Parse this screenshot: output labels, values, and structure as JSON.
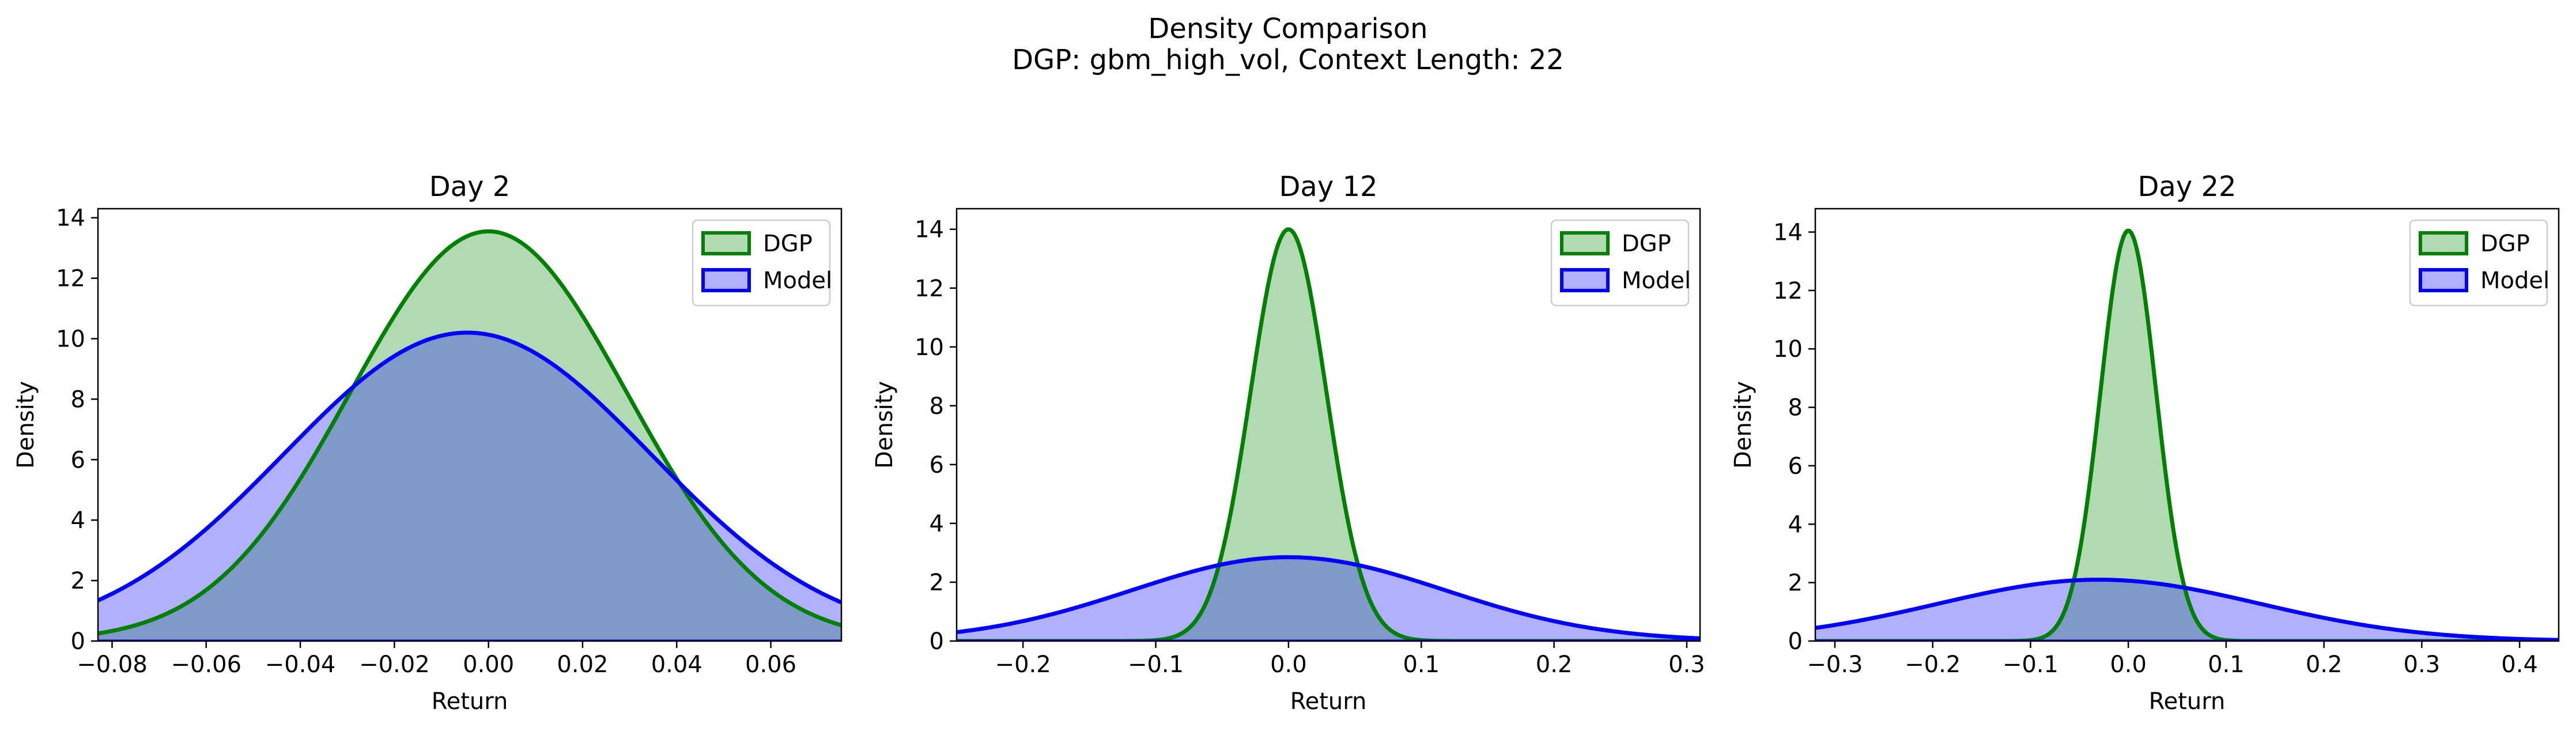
{
  "figure": {
    "title_line1": "Density Comparison",
    "title_line2": "DGP: gbm_high_vol, Context Length: 22"
  },
  "colors": {
    "dgp_line": "#008000",
    "dgp_fill": "#b3d9b3",
    "model_line": "#0000ff",
    "model_fill": "#b0b0ff",
    "overlap_fill": "#7f9ac9"
  },
  "chart_data": [
    {
      "type": "area",
      "title": "Day 2",
      "xlabel": "Return",
      "ylabel": "Density",
      "xlim": [
        -0.083,
        0.075
      ],
      "ylim": [
        0,
        14.3
      ],
      "xticks": [
        -0.08,
        -0.06,
        -0.04,
        -0.02,
        0.0,
        0.02,
        0.04,
        0.06
      ],
      "xtick_labels": [
        "−0.08",
        "−0.06",
        "−0.04",
        "−0.02",
        "0.00",
        "0.02",
        "0.04",
        "0.06"
      ],
      "yticks": [
        0,
        2,
        4,
        6,
        8,
        10,
        12,
        14
      ],
      "ytick_labels": [
        "0",
        "2",
        "4",
        "6",
        "8",
        "10",
        "12",
        "14"
      ],
      "legend_position": "top-right",
      "series": [
        {
          "name": "DGP",
          "mean": 0.0,
          "std": 0.0294,
          "peak": 13.55
        },
        {
          "name": "Model",
          "mean": -0.0045,
          "std": 0.039,
          "peak": 10.2
        }
      ]
    },
    {
      "type": "area",
      "title": "Day 12",
      "xlabel": "Return",
      "ylabel": "Density",
      "xlim": [
        -0.25,
        0.31
      ],
      "ylim": [
        0,
        14.7
      ],
      "xticks": [
        -0.2,
        -0.1,
        0.0,
        0.1,
        0.2,
        0.3
      ],
      "xtick_labels": [
        "−0.2",
        "−0.1",
        "0.0",
        "0.1",
        "0.2",
        "0.3"
      ],
      "yticks": [
        0,
        2,
        4,
        6,
        8,
        10,
        12,
        14
      ],
      "ytick_labels": [
        "0",
        "2",
        "4",
        "6",
        "8",
        "10",
        "12",
        "14"
      ],
      "legend_position": "top-right",
      "series": [
        {
          "name": "DGP",
          "mean": 0.0,
          "std": 0.0285,
          "peak": 14.0
        },
        {
          "name": "Model",
          "mean": 0.0,
          "std": 0.118,
          "peak": 2.85
        }
      ]
    },
    {
      "type": "area",
      "title": "Day 22",
      "xlabel": "Return",
      "ylabel": "Density",
      "xlim": [
        -0.32,
        0.44
      ],
      "ylim": [
        0,
        14.8
      ],
      "xticks": [
        -0.3,
        -0.2,
        -0.1,
        0.0,
        0.1,
        0.2,
        0.3,
        0.4
      ],
      "xtick_labels": [
        "−0.3",
        "−0.2",
        "−0.1",
        "0.0",
        "0.1",
        "0.2",
        "0.3",
        "0.4"
      ],
      "yticks": [
        0,
        2,
        4,
        6,
        8,
        10,
        12,
        14
      ],
      "ytick_labels": [
        "0",
        "2",
        "4",
        "6",
        "8",
        "10",
        "12",
        "14"
      ],
      "legend_position": "top-right",
      "series": [
        {
          "name": "DGP",
          "mean": 0.0,
          "std": 0.0285,
          "peak": 14.05
        },
        {
          "name": "Model",
          "mean": -0.03,
          "std": 0.165,
          "peak": 2.1
        }
      ]
    }
  ]
}
